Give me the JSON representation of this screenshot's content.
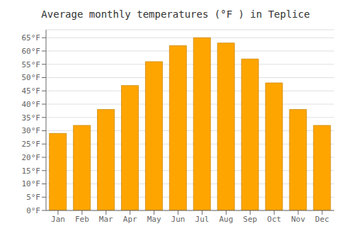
{
  "chart_data": {
    "type": "bar",
    "title": "Average monthly temperatures (°F ) in Teplice",
    "categories": [
      "Jan",
      "Feb",
      "Mar",
      "Apr",
      "May",
      "Jun",
      "Jul",
      "Aug",
      "Sep",
      "Oct",
      "Nov",
      "Dec"
    ],
    "values": [
      29,
      32,
      38,
      47,
      56,
      62,
      65,
      63,
      57,
      48,
      38,
      32
    ],
    "color": "#FFA500",
    "ylim": [
      0,
      68
    ],
    "yticks": [
      {
        "value": 0,
        "label": "0°F"
      },
      {
        "value": 5,
        "label": "5°F"
      },
      {
        "value": 10,
        "label": "10°F"
      },
      {
        "value": 15,
        "label": "15°F"
      },
      {
        "value": 20,
        "label": "20°F"
      },
      {
        "value": 25,
        "label": "25°F"
      },
      {
        "value": 30,
        "label": "30°F"
      },
      {
        "value": 35,
        "label": "35°F"
      },
      {
        "value": 40,
        "label": "40°F"
      },
      {
        "value": 45,
        "label": "45°F"
      },
      {
        "value": 50,
        "label": "50°F"
      },
      {
        "value": 55,
        "label": "55°F"
      },
      {
        "value": 60,
        "label": "60°F"
      },
      {
        "value": 65,
        "label": "65°F"
      }
    ],
    "grid": true
  }
}
